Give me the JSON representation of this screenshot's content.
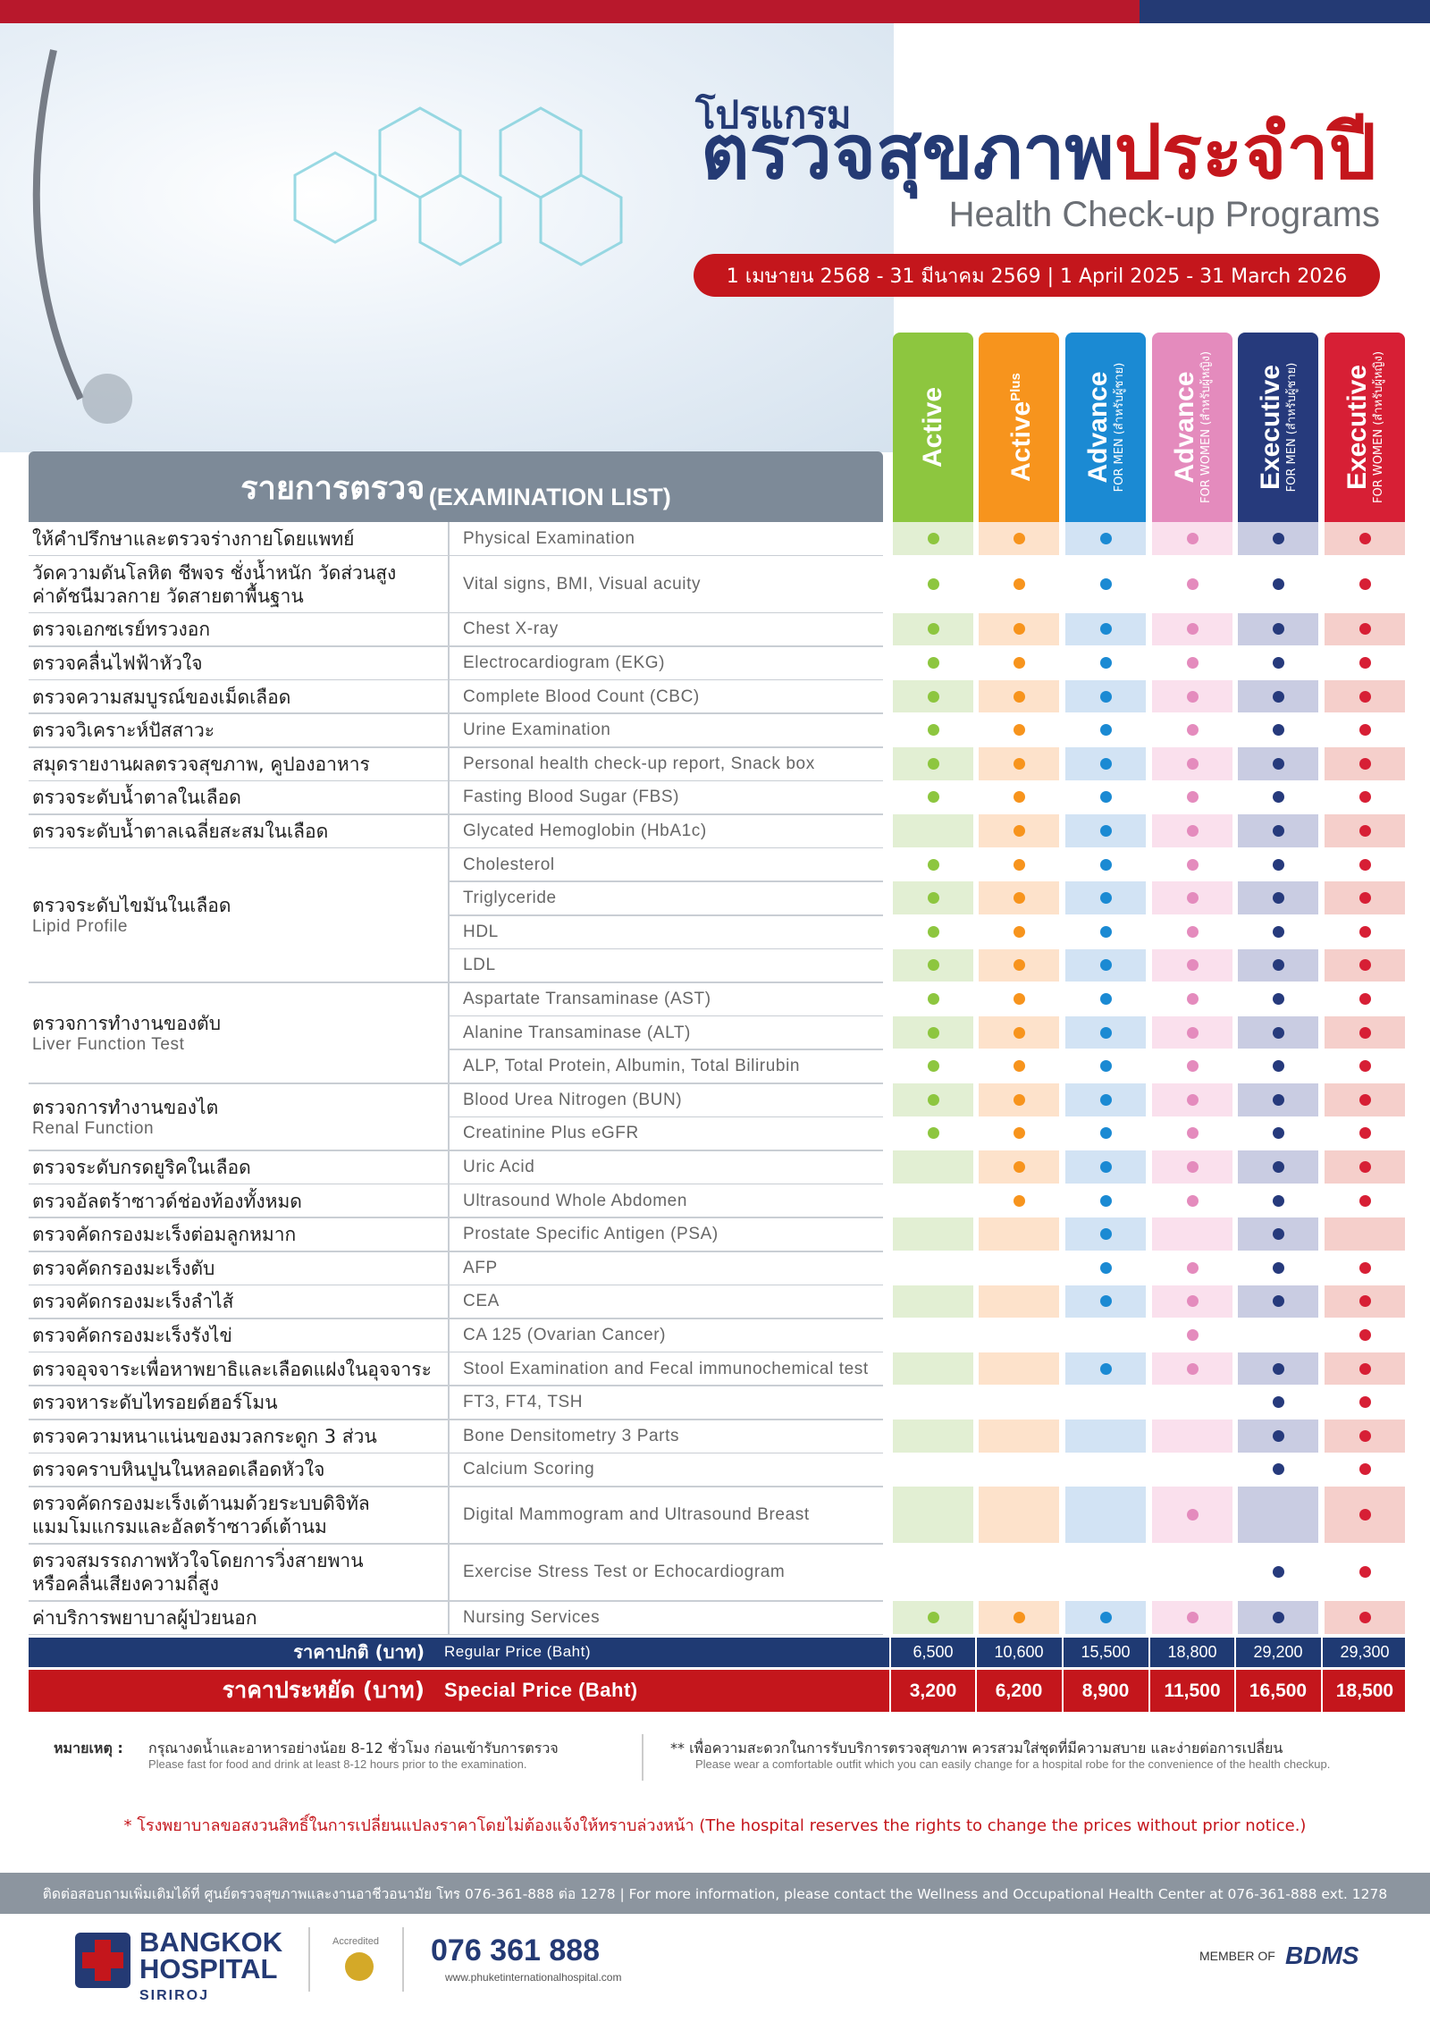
{
  "header": {
    "program_label": "โปรแกรม",
    "title_navy": "ตรวจสุขภาพ",
    "title_red": "ประจำปี",
    "title_english": "Health Check-up Programs",
    "period": "1 เมษายน 2568 - 31 มีนาคม 2569 | 1 April 2025 - 31 March 2026"
  },
  "packages": [
    {
      "name": "Active",
      "color": "#8dc63f",
      "tint": "#e2efd3"
    },
    {
      "name": "Active",
      "superscript": "Plus",
      "color": "#f7941d",
      "tint": "#fde2cb"
    },
    {
      "name": "Advance",
      "subtitle": "FOR MEN (สำหรับผู้ชาย)",
      "color": "#1b8ad3",
      "tint": "#d2e3f4"
    },
    {
      "name": "Advance",
      "subtitle": "FOR WOMEN (สำหรับผู้หญิง)",
      "color": "#e48bbd",
      "tint": "#fae0ed"
    },
    {
      "name": "Executive",
      "subtitle": "FOR MEN (สำหรับผู้ชาย)",
      "color": "#263a7c",
      "tint": "#c9cce2"
    },
    {
      "name": "Executive",
      "subtitle": "FOR WOMEN (สำหรับผู้หญิง)",
      "color": "#d71f35",
      "tint": "#f5cfcb"
    }
  ],
  "table": {
    "title_thai": "รายการตรวจ",
    "title_english": "(EXAMINATION LIST)",
    "sections": [
      {
        "thai": "ให้คำปรึกษาและตรวจร่างกายโดยแพทย์",
        "tests": [
          {
            "english": "Physical Examination",
            "included": [
              true,
              true,
              true,
              true,
              true,
              true
            ]
          }
        ]
      },
      {
        "thai": "วัดความดันโลหิต ชีพจร ชั่งน้ำหนัก วัดส่วนสูง\nค่าดัชนีมวลกาย วัดสายตาพื้นฐาน",
        "tests": [
          {
            "english": "Vital signs, BMI, Visual acuity",
            "included": [
              true,
              true,
              true,
              true,
              true,
              true
            ]
          }
        ]
      },
      {
        "thai": "ตรวจเอกซเรย์ทรวงอก",
        "tests": [
          {
            "english": "Chest X-ray",
            "included": [
              true,
              true,
              true,
              true,
              true,
              true
            ]
          }
        ]
      },
      {
        "thai": "ตรวจคลื่นไฟฟ้าหัวใจ",
        "tests": [
          {
            "english": "Electrocardiogram (EKG)",
            "included": [
              true,
              true,
              true,
              true,
              true,
              true
            ]
          }
        ]
      },
      {
        "thai": "ตรวจความสมบูรณ์ของเม็ดเลือด",
        "tests": [
          {
            "english": "Complete Blood Count (CBC)",
            "included": [
              true,
              true,
              true,
              true,
              true,
              true
            ]
          }
        ]
      },
      {
        "thai": "ตรวจวิเคราะห์ปัสสาวะ",
        "tests": [
          {
            "english": "Urine Examination",
            "included": [
              true,
              true,
              true,
              true,
              true,
              true
            ]
          }
        ]
      },
      {
        "thai": "สมุดรายงานผลตรวจสุขภาพ, คูปองอาหาร",
        "tests": [
          {
            "english": "Personal health check-up report, Snack box",
            "included": [
              true,
              true,
              true,
              true,
              true,
              true
            ]
          }
        ]
      },
      {
        "thai": "ตรวจระดับน้ำตาลในเลือด",
        "tests": [
          {
            "english": "Fasting Blood Sugar (FBS)",
            "included": [
              true,
              true,
              true,
              true,
              true,
              true
            ]
          }
        ]
      },
      {
        "thai": "ตรวจระดับน้ำตาลเฉลี่ยสะสมในเลือด",
        "tests": [
          {
            "english": "Glycated Hemoglobin (HbA1c)",
            "included": [
              false,
              true,
              true,
              true,
              true,
              true
            ]
          }
        ]
      },
      {
        "thai": "ตรวจระดับไขมันในเลือด",
        "subtitle": "Lipid Profile",
        "tests": [
          {
            "english": "Cholesterol",
            "included": [
              true,
              true,
              true,
              true,
              true,
              true
            ]
          },
          {
            "english": "Triglyceride",
            "included": [
              true,
              true,
              true,
              true,
              true,
              true
            ]
          },
          {
            "english": "HDL",
            "included": [
              true,
              true,
              true,
              true,
              true,
              true
            ]
          },
          {
            "english": "LDL",
            "included": [
              true,
              true,
              true,
              true,
              true,
              true
            ]
          }
        ]
      },
      {
        "thai": "ตรวจการทำงานของตับ",
        "subtitle": "Liver Function Test",
        "tests": [
          {
            "english": "Aspartate Transaminase (AST)",
            "included": [
              true,
              true,
              true,
              true,
              true,
              true
            ]
          },
          {
            "english": "Alanine Transaminase (ALT)",
            "included": [
              true,
              true,
              true,
              true,
              true,
              true
            ]
          },
          {
            "english": "ALP, Total Protein, Albumin, Total Bilirubin",
            "included": [
              true,
              true,
              true,
              true,
              true,
              true
            ]
          }
        ]
      },
      {
        "thai": "ตรวจการทำงานของไต",
        "subtitle": "Renal Function",
        "tests": [
          {
            "english": "Blood Urea Nitrogen (BUN)",
            "included": [
              true,
              true,
              true,
              true,
              true,
              true
            ]
          },
          {
            "english": "Creatinine Plus eGFR",
            "included": [
              true,
              true,
              true,
              true,
              true,
              true
            ]
          }
        ]
      },
      {
        "thai": "ตรวจระดับกรดยูริคในเลือด",
        "tests": [
          {
            "english": "Uric Acid",
            "included": [
              false,
              true,
              true,
              true,
              true,
              true
            ]
          }
        ]
      },
      {
        "thai": "ตรวจอัลตร้าซาวด์ช่องท้องทั้งหมด",
        "tests": [
          {
            "english": "Ultrasound Whole Abdomen",
            "included": [
              false,
              true,
              true,
              true,
              true,
              true
            ]
          }
        ]
      },
      {
        "thai": "ตรวจคัดกรองมะเร็งต่อมลูกหมาก",
        "tests": [
          {
            "english": "Prostate Specific Antigen (PSA)",
            "included": [
              false,
              false,
              true,
              false,
              true,
              false
            ]
          }
        ]
      },
      {
        "thai": "ตรวจคัดกรองมะเร็งตับ",
        "tests": [
          {
            "english": "AFP",
            "included": [
              false,
              false,
              true,
              true,
              true,
              true
            ]
          }
        ]
      },
      {
        "thai": "ตรวจคัดกรองมะเร็งลำไส้",
        "tests": [
          {
            "english": "CEA",
            "included": [
              false,
              false,
              true,
              true,
              true,
              true
            ]
          }
        ]
      },
      {
        "thai": "ตรวจคัดกรองมะเร็งรังไข่",
        "tests": [
          {
            "english": "CA 125 (Ovarian Cancer)",
            "included": [
              false,
              false,
              false,
              true,
              false,
              true
            ]
          }
        ]
      },
      {
        "thai": "ตรวจอุจจาระเพื่อหาพยาธิและเลือดแฝงในอุจจาระ",
        "tests": [
          {
            "english": "Stool Examination and Fecal immunochemical test",
            "included": [
              false,
              false,
              true,
              true,
              true,
              true
            ]
          }
        ]
      },
      {
        "thai": "ตรวจหาระดับไทรอยด์ฮอร์โมน",
        "tests": [
          {
            "english": "FT3, FT4, TSH",
            "included": [
              false,
              false,
              false,
              false,
              true,
              true
            ]
          }
        ]
      },
      {
        "thai": "ตรวจความหนาแน่นของมวลกระดูก 3 ส่วน",
        "tests": [
          {
            "english": "Bone Densitometry 3 Parts",
            "included": [
              false,
              false,
              false,
              false,
              true,
              true
            ]
          }
        ]
      },
      {
        "thai": "ตรวจคราบหินปูนในหลอดเลือดหัวใจ",
        "tests": [
          {
            "english": "Calcium Scoring",
            "included": [
              false,
              false,
              false,
              false,
              true,
              true
            ]
          }
        ]
      },
      {
        "thai": "ตรวจคัดกรองมะเร็งเต้านมด้วยระบบดิจิทัล\nแมมโมแกรมและอัลตร้าซาวด์เต้านม",
        "tests": [
          {
            "english": "Digital Mammogram and Ultrasound Breast",
            "included": [
              false,
              false,
              false,
              true,
              false,
              true
            ]
          }
        ]
      },
      {
        "thai": "ตรวจสมรรถภาพหัวใจโดยการวิ่งสายพาน\nหรือคลื่นเสียงความถี่สูง",
        "tests": [
          {
            "english": "Exercise Stress Test or Echocardiogram",
            "included": [
              false,
              false,
              false,
              false,
              true,
              true
            ]
          }
        ]
      },
      {
        "thai": "ค่าบริการพยาบาลผู้ป่วยนอก",
        "tests": [
          {
            "english": "Nursing  Services",
            "included": [
              true,
              true,
              true,
              true,
              true,
              true
            ]
          }
        ]
      }
    ],
    "prices": [
      {
        "thai": "ราคาปกติ (บาท)",
        "english": "Regular Price (Baht)",
        "values": [
          "6,500",
          "10,600",
          "15,500",
          "18,800",
          "29,200",
          "29,300"
        ]
      },
      {
        "thai": "ราคาประหยัด (บาท)",
        "english": "Special Price (Baht)",
        "values": [
          "3,200",
          "6,200",
          "8,900",
          "11,500",
          "16,500",
          "18,500"
        ]
      }
    ]
  },
  "notes": {
    "label": "หมายเหตุ :",
    "items": [
      {
        "thai": "กรุณางดน้ำและอาหารอย่างน้อย 8-12 ชั่วโมง ก่อนเข้ารับการตรวจ",
        "english": "Please fast for food and drink at least 8-12 hours prior to the examination."
      },
      {
        "thai": "** เพื่อความสะดวกในการรับบริการตรวจสุขภาพ ควรสวมใส่ชุดที่มีความสบาย และง่ายต่อการเปลี่ยน",
        "english": "Please wear a comfortable outfit which you can easily change for a hospital robe for the convenience of the health checkup."
      }
    ],
    "disclaimer": "* โรงพยาบาลขอสงวนสิทธิ์ในการเปลี่ยนแปลงราคาโดยไม่ต้องแจ้งให้ทราบล่วงหน้า (The hospital reserves the rights to change the prices without prior notice.)"
  },
  "footer": {
    "contact": "ติดต่อสอบถามเพิ่มเติมได้ที่ ศูนย์ตรวจสุขภาพและงานอาชีวอนามัย โทร 076-361-888 ต่อ 1278 | For more information, please contact the Wellness and Occupational Health Center at 076-361-888 ext. 1278",
    "hospital": "BANGKOK HOSPITAL",
    "branch": "SIRIROJ",
    "accredited": "Accredited",
    "phone": "076 361 888",
    "website": "www.phuketinternationalhospital.com",
    "member_of": "MEMBER OF",
    "group": "BDMS"
  }
}
